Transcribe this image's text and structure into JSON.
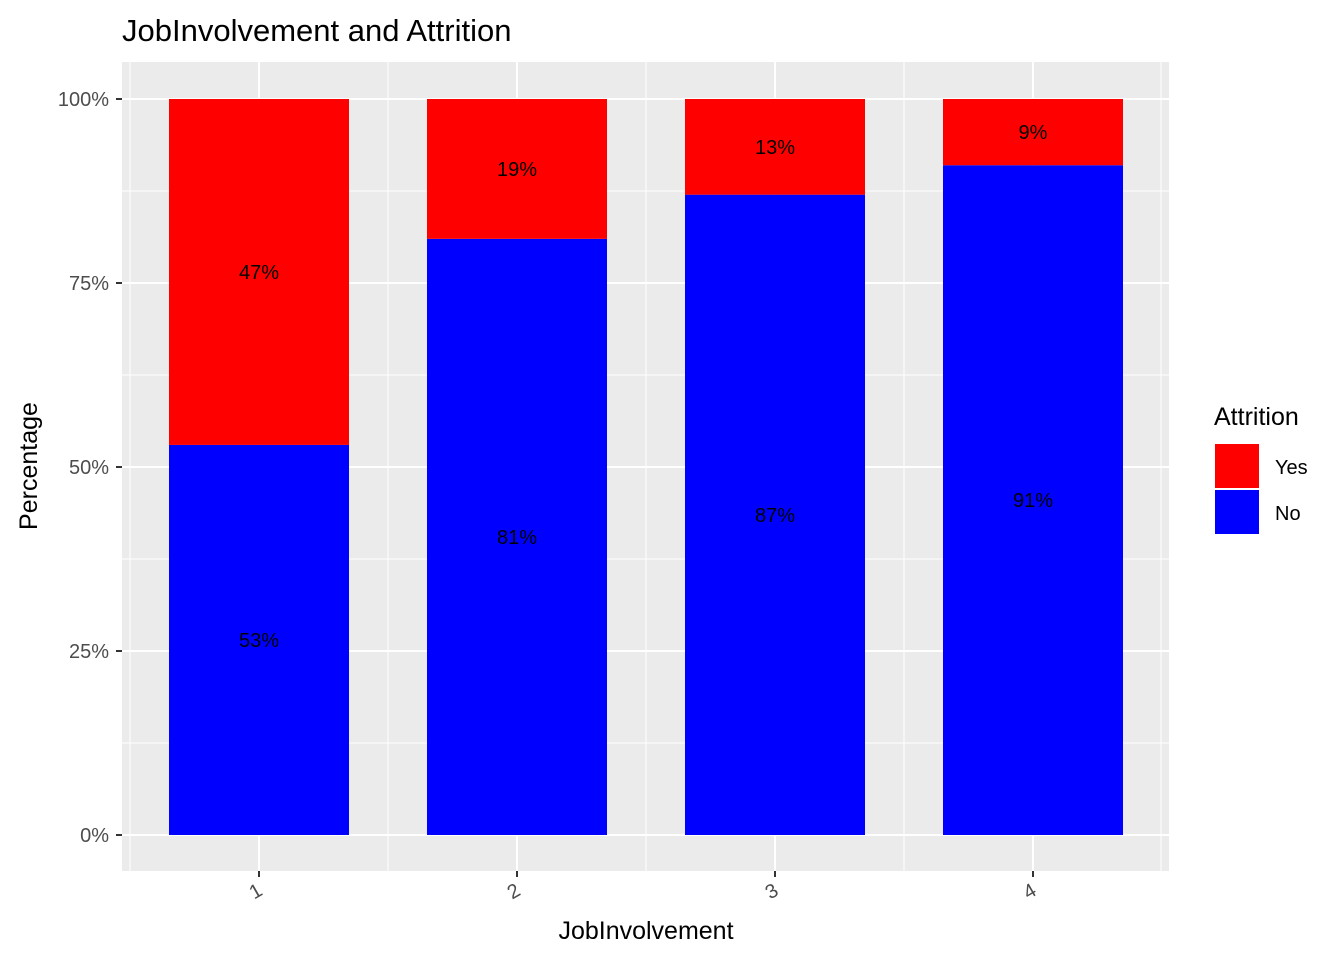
{
  "chart_data": {
    "type": "bar",
    "stacked": true,
    "title": "JobInvolvement and Attrition",
    "xlabel": "JobInvolvement",
    "ylabel": "Percentage",
    "categories": [
      "1",
      "2",
      "3",
      "4"
    ],
    "ylim": [
      0,
      100
    ],
    "yticks": [
      "0%",
      "25%",
      "50%",
      "75%",
      "100%"
    ],
    "ytick_values": [
      0,
      25,
      50,
      75,
      100
    ],
    "grid": true,
    "legend": {
      "title": "Attrition",
      "position": "right",
      "entries": [
        "Yes",
        "No"
      ]
    },
    "series": [
      {
        "name": "No",
        "color": "#0000ff",
        "values": [
          53,
          81,
          87,
          91
        ],
        "labels": [
          "53%",
          "81%",
          "87%",
          "91%"
        ]
      },
      {
        "name": "Yes",
        "color": "#ff0000",
        "values": [
          47,
          19,
          13,
          9
        ],
        "labels": [
          "47%",
          "19%",
          "13%",
          "9%"
        ]
      }
    ]
  }
}
